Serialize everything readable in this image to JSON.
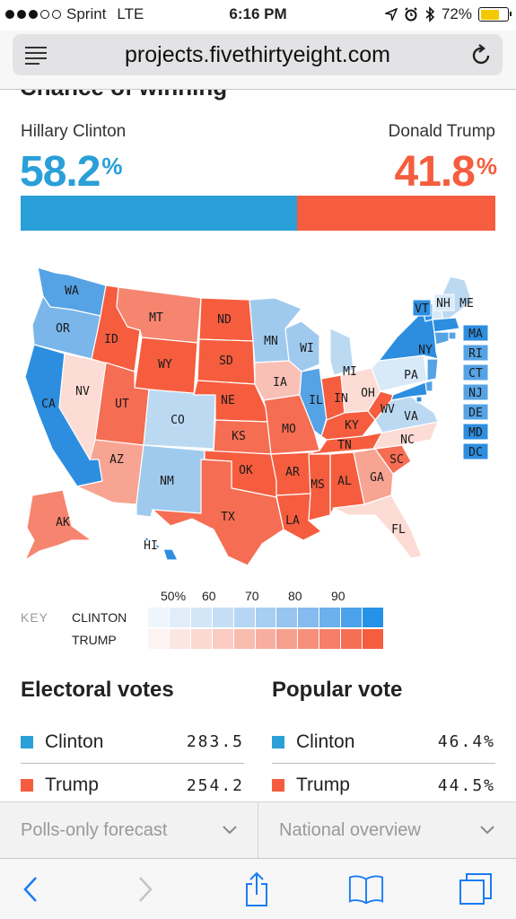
{
  "status_bar": {
    "carrier": "Sprint",
    "network": "LTE",
    "time": "6:16 PM",
    "battery": "72%",
    "icons": [
      "signal-dots-icon",
      "location-icon",
      "alarm-icon",
      "bluetooth-icon",
      "battery-icon"
    ]
  },
  "browser": {
    "url": "projects.fivethirtyeight.com",
    "icons": [
      "reader-menu-icon",
      "reload-icon"
    ]
  },
  "forecast": {
    "title": "Chance of winning",
    "clinton": {
      "name": "Hillary Clinton",
      "pct": "58.2",
      "pct_value": 58.2,
      "color": "#2a9fd8"
    },
    "trump": {
      "name": "Donald Trump",
      "pct": "41.8",
      "pct_value": 41.8,
      "color": "#f55d3e"
    },
    "percent_sign": "%"
  },
  "map": {
    "states": [
      {
        "abbr": "WA",
        "party": "D",
        "shade": 5
      },
      {
        "abbr": "OR",
        "party": "D",
        "shade": 4
      },
      {
        "abbr": "CA",
        "party": "D",
        "shade": 6
      },
      {
        "abbr": "NV",
        "party": "R",
        "shade": 1
      },
      {
        "abbr": "ID",
        "party": "R",
        "shade": 6
      },
      {
        "abbr": "MT",
        "party": "R",
        "shade": 4
      },
      {
        "abbr": "WY",
        "party": "R",
        "shade": 6
      },
      {
        "abbr": "UT",
        "party": "R",
        "shade": 5
      },
      {
        "abbr": "AZ",
        "party": "R",
        "shade": 3
      },
      {
        "abbr": "CO",
        "party": "D",
        "shade": 2
      },
      {
        "abbr": "NM",
        "party": "D",
        "shade": 3
      },
      {
        "abbr": "ND",
        "party": "R",
        "shade": 6
      },
      {
        "abbr": "SD",
        "party": "R",
        "shade": 6
      },
      {
        "abbr": "NE",
        "party": "R",
        "shade": 6
      },
      {
        "abbr": "KS",
        "party": "R",
        "shade": 5
      },
      {
        "abbr": "OK",
        "party": "R",
        "shade": 6
      },
      {
        "abbr": "TX",
        "party": "R",
        "shade": 5
      },
      {
        "abbr": "MN",
        "party": "D",
        "shade": 3
      },
      {
        "abbr": "IA",
        "party": "R",
        "shade": 2
      },
      {
        "abbr": "MO",
        "party": "R",
        "shade": 5
      },
      {
        "abbr": "AR",
        "party": "R",
        "shade": 6
      },
      {
        "abbr": "LA",
        "party": "R",
        "shade": 6
      },
      {
        "abbr": "WI",
        "party": "D",
        "shade": 3
      },
      {
        "abbr": "IL",
        "party": "D",
        "shade": 5
      },
      {
        "abbr": "MI",
        "party": "D",
        "shade": 2
      },
      {
        "abbr": "IN",
        "party": "R",
        "shade": 6
      },
      {
        "abbr": "OH",
        "party": "R",
        "shade": 1
      },
      {
        "abbr": "KY",
        "party": "R",
        "shade": 6
      },
      {
        "abbr": "TN",
        "party": "R",
        "shade": 6
      },
      {
        "abbr": "MS",
        "party": "R",
        "shade": 6
      },
      {
        "abbr": "AL",
        "party": "R",
        "shade": 6
      },
      {
        "abbr": "GA",
        "party": "R",
        "shade": 3
      },
      {
        "abbr": "FL",
        "party": "R",
        "shade": 1
      },
      {
        "abbr": "SC",
        "party": "R",
        "shade": 5
      },
      {
        "abbr": "NC",
        "party": "R",
        "shade": 1
      },
      {
        "abbr": "VA",
        "party": "D",
        "shade": 2
      },
      {
        "abbr": "WV",
        "party": "R",
        "shade": 6
      },
      {
        "abbr": "PA",
        "party": "D",
        "shade": 1
      },
      {
        "abbr": "NY",
        "party": "D",
        "shade": 6
      },
      {
        "abbr": "VT",
        "party": "D",
        "shade": 6
      },
      {
        "abbr": "NH",
        "party": "D",
        "shade": 1
      },
      {
        "abbr": "ME",
        "party": "D",
        "shade": 2
      },
      {
        "abbr": "MA",
        "party": "D",
        "shade": 6
      },
      {
        "abbr": "RI",
        "party": "D",
        "shade": 5
      },
      {
        "abbr": "CT",
        "party": "D",
        "shade": 5
      },
      {
        "abbr": "NJ",
        "party": "D",
        "shade": 5
      },
      {
        "abbr": "DE",
        "party": "D",
        "shade": 5
      },
      {
        "abbr": "MD",
        "party": "D",
        "shade": 6
      },
      {
        "abbr": "DC",
        "party": "D",
        "shade": 6
      },
      {
        "abbr": "AK",
        "party": "R",
        "shade": 4
      },
      {
        "abbr": "HI",
        "party": "D",
        "shade": 6
      }
    ],
    "palette": {
      "D": [
        "#eef5fc",
        "#d8e9f8",
        "#bcd9f2",
        "#9fcaee",
        "#7ab6ea",
        "#55a3e5",
        "#2d8ee0"
      ],
      "R": [
        "#fdf0ed",
        "#fcdcd5",
        "#f9c1b6",
        "#f7a493",
        "#f6856f",
        "#f56d53",
        "#f55d3e"
      ]
    }
  },
  "key": {
    "label": "KEY",
    "clinton": "CLINTON",
    "trump": "TRUMP",
    "ticks": [
      "50%",
      "60",
      "70",
      "80",
      "90"
    ],
    "clinton_colors": [
      "#eef5fc",
      "#e1edfa",
      "#d3e6f8",
      "#c5def6",
      "#b7d6f4",
      "#a8cef2",
      "#98c5f0",
      "#85bbee",
      "#6cb0ec",
      "#4aa2ea",
      "#2592e8"
    ],
    "trump_colors": [
      "#fdf3f1",
      "#fce6e2",
      "#fbd9d2",
      "#facbc1",
      "#f9bdb0",
      "#f8ae9f",
      "#f79f8d",
      "#f68f7b",
      "#f57f68",
      "#f56f55",
      "#f55d3e"
    ]
  },
  "electoral": {
    "title": "Electoral votes",
    "rows": [
      {
        "name": "Clinton",
        "value": "283.5",
        "color": "#2a9fd8"
      },
      {
        "name": "Trump",
        "value": "254.2",
        "color": "#f55d3e"
      }
    ]
  },
  "popular": {
    "title": "Popular vote",
    "rows": [
      {
        "name": "Clinton",
        "value": "46.4%",
        "color": "#2a9fd8"
      },
      {
        "name": "Trump",
        "value": "44.5%",
        "color": "#f55d3e"
      }
    ]
  },
  "dropdowns": {
    "forecast_type": "Polls-only forecast",
    "view": "National overview"
  },
  "toolbar": {
    "icons": [
      "back-icon",
      "forward-icon",
      "share-icon",
      "bookmarks-icon",
      "tabs-icon"
    ]
  }
}
